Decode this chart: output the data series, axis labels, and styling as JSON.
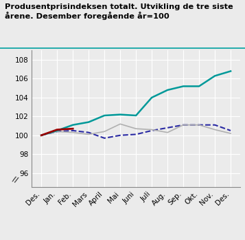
{
  "title": "Produsentprisindeksen totalt. Utvikling de tre siste\nårene. Desember foregående år=100",
  "x_labels": [
    "Des.",
    "Jan.",
    "Feb.",
    "Mars",
    "April",
    "Mai",
    "Juni",
    "Juli",
    "Aug.",
    "Sep.",
    "Okt.",
    "Nov.",
    "Des."
  ],
  "series": {
    "1997": [
      100.0,
      100.4,
      100.5,
      100.3,
      99.7,
      100.0,
      100.1,
      100.5,
      100.8,
      101.1,
      101.1,
      101.1,
      100.5
    ],
    "1998": [
      100.0,
      100.4,
      100.3,
      100.1,
      100.4,
      101.2,
      100.7,
      100.6,
      100.3,
      101.1,
      101.1,
      100.6,
      100.2
    ],
    "1999": [
      100.0,
      100.5,
      101.1,
      101.4,
      102.1,
      102.2,
      102.1,
      104.0,
      104.8,
      105.2,
      105.2,
      106.3,
      106.8
    ],
    "2000": [
      100.0,
      100.6,
      100.7
    ]
  },
  "colors": {
    "1997": "#2929a3",
    "1998": "#b0b0b0",
    "1999": "#009999",
    "2000": "#990000"
  },
  "linestyles": {
    "1997": "--",
    "1998": "-",
    "1999": "-",
    "2000": "-"
  },
  "linewidths": {
    "1997": 1.5,
    "1998": 1.2,
    "1999": 1.8,
    "2000": 2.0
  },
  "ylim": [
    94.5,
    109.0
  ],
  "ytick_values": [
    96,
    98,
    100,
    102,
    104,
    106,
    108
  ],
  "ytick_labels": [
    "96",
    "98",
    "100",
    "102",
    "104",
    "106",
    "108"
  ],
  "background_color": "#ebebeb",
  "plot_bg_color": "#ebebeb",
  "grid_color": "#ffffff",
  "title_fontsize": 8.2,
  "axis_fontsize": 7.5,
  "legend_fontsize": 8.0,
  "teal_line_color": "#00a0a0",
  "title_line_color": "#00aaaa"
}
